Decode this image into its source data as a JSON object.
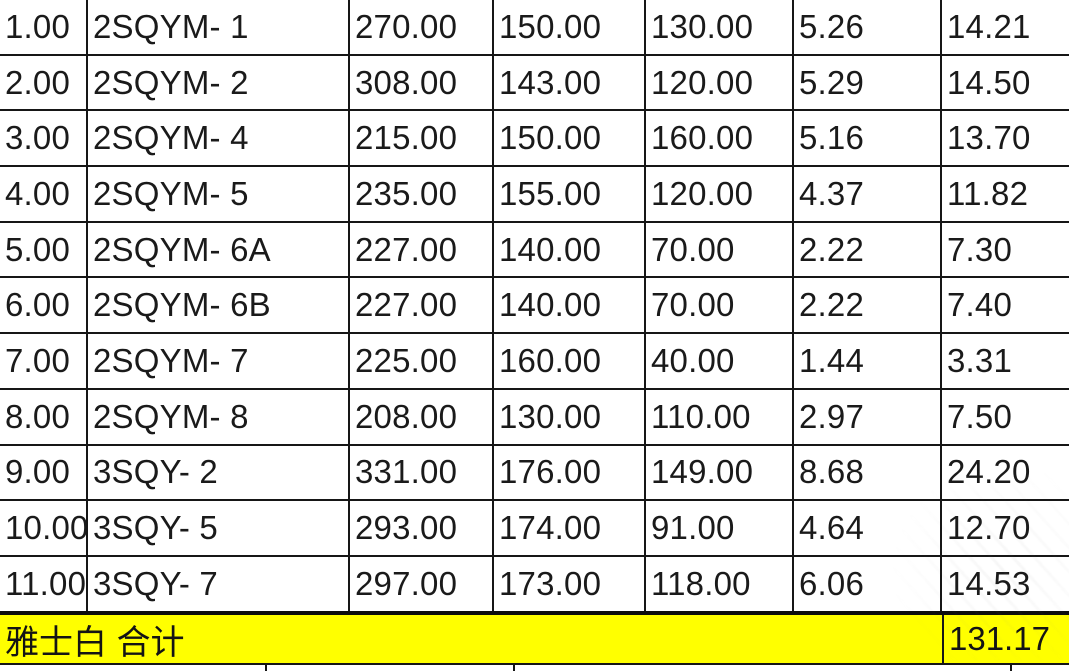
{
  "app": {
    "view": "spreadsheet-table-crop"
  },
  "table": {
    "rows": [
      [
        "1.00",
        "2SQYM- 1",
        "270.00",
        "150.00",
        "130.00",
        "5.26",
        "14.21"
      ],
      [
        "2.00",
        "2SQYM- 2",
        "308.00",
        "143.00",
        "120.00",
        "5.29",
        "14.50"
      ],
      [
        "3.00",
        "2SQYM- 4",
        "215.00",
        "150.00",
        "160.00",
        "5.16",
        "13.70"
      ],
      [
        "4.00",
        "2SQYM- 5",
        "235.00",
        "155.00",
        "120.00",
        "4.37",
        "11.82"
      ],
      [
        "5.00",
        "2SQYM- 6A",
        "227.00",
        "140.00",
        "70.00",
        "2.22",
        "7.30"
      ],
      [
        "6.00",
        "2SQYM- 6B",
        "227.00",
        "140.00",
        "70.00",
        "2.22",
        "7.40"
      ],
      [
        "7.00",
        "2SQYM- 7",
        "225.00",
        "160.00",
        "40.00",
        "1.44",
        "3.31"
      ],
      [
        "8.00",
        "2SQYM- 8",
        "208.00",
        "130.00",
        "110.00",
        "2.97",
        "7.50"
      ],
      [
        "9.00",
        "3SQY- 2",
        "331.00",
        "176.00",
        "149.00",
        "8.68",
        "24.20"
      ],
      [
        "10.00",
        "3SQY- 5",
        "293.00",
        "174.00",
        "91.00",
        "4.64",
        "12.70"
      ],
      [
        "11.00",
        "3SQY- 7",
        "297.00",
        "173.00",
        "118.00",
        "6.06",
        "14.53"
      ]
    ]
  },
  "total_row": {
    "label": "雅士白 合计",
    "value": "131.17"
  },
  "colors": {
    "highlight": "#ffff00",
    "grid_line": "#161616",
    "text": "#1a1a1a",
    "background": "#ffffff"
  }
}
